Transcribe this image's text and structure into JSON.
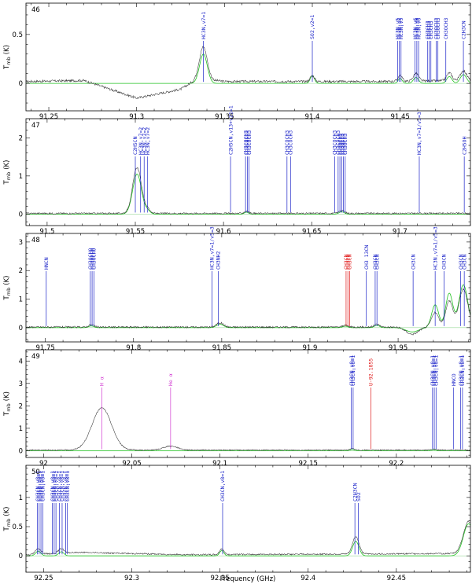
{
  "colors": {
    "observed": "#333333",
    "model": "#22c322",
    "label_default": "#1a22c8",
    "label_red": "#e01818",
    "label_magenta": "#d23cd2"
  },
  "chart_data": {
    "type": "line",
    "xlabel": "Frequency (GHz)",
    "ylabel": "T_mb (K)",
    "ylabel_main": "T",
    "ylabel_sub": "mb",
    "ylabel_unit": "(K)",
    "panels": [
      {
        "id": "46",
        "xlim": [
          91.237,
          91.49
        ],
        "ylim": [
          -0.28,
          0.82
        ],
        "xticks": [
          91.25,
          91.3,
          91.35,
          91.4,
          91.45
        ],
        "xtick_labels": [
          "91.25",
          "91.3",
          "91.35",
          "91.4",
          "91.45"
        ],
        "yticks": [
          0,
          0.5
        ],
        "ytick_labels": [
          "0",
          "0.5"
        ],
        "noise": 0.012,
        "baseline": [
          [
            91.237,
            0.02
          ],
          [
            91.27,
            0.03
          ],
          [
            91.3,
            -0.15
          ],
          [
            91.325,
            -0.06
          ],
          [
            91.335,
            0.05
          ],
          [
            91.35,
            0.02
          ],
          [
            91.44,
            0.02
          ],
          [
            91.49,
            0.03
          ]
        ],
        "features": [
          {
            "c": 91.338,
            "a": 0.33,
            "w": 0.0022,
            "m": 0.3
          },
          {
            "c": 91.4,
            "a": 0.06,
            "w": 0.0012,
            "m": 0.08
          },
          {
            "c": 91.45,
            "a": 0.06,
            "w": 0.0012,
            "m": 0.05
          },
          {
            "c": 91.459,
            "a": 0.08,
            "w": 0.0015,
            "m": 0.06
          },
          {
            "c": 91.478,
            "a": 0.08,
            "w": 0.0015,
            "m": 0.07
          },
          {
            "c": 91.486,
            "a": 0.1,
            "w": 0.0018,
            "m": 0.09
          }
        ],
        "lines": [
          {
            "f": 91.338,
            "label": "HC3N,v7=1",
            "color": "blue"
          },
          {
            "f": 91.4,
            "label": "SO2,v2=1",
            "color": "blue"
          },
          {
            "f": 91.4485,
            "label": "HC3N,v5",
            "color": "blue"
          },
          {
            "f": 91.4495,
            "label": "HC3N,v5",
            "color": "blue"
          },
          {
            "f": 91.4505,
            "label": "HC3N,v5",
            "color": "blue"
          },
          {
            "f": 91.4585,
            "label": "HC3N,v6",
            "color": "blue"
          },
          {
            "f": 91.4595,
            "label": "HC3N,v6",
            "color": "blue"
          },
          {
            "f": 91.4605,
            "label": "HC3N,v6",
            "color": "blue"
          },
          {
            "f": 91.4655,
            "label": "CH3CH3",
            "color": "blue"
          },
          {
            "f": 91.4665,
            "label": "CH3CH3",
            "color": "blue"
          },
          {
            "f": 91.4675,
            "label": "CH3CH3",
            "color": "blue"
          },
          {
            "f": 91.4705,
            "label": "CH3OCH3",
            "color": "blue"
          },
          {
            "f": 91.4715,
            "label": "CH3OCH3",
            "color": "blue"
          },
          {
            "f": 91.476,
            "label": "CH3OCH3",
            "color": "blue"
          },
          {
            "f": 91.486,
            "label": "C2H3CN",
            "color": "blue"
          }
        ]
      },
      {
        "id": "47",
        "xlim": [
          91.488,
          91.74
        ],
        "ylim": [
          -0.3,
          2.5
        ],
        "xticks": [
          91.5,
          91.55,
          91.6,
          91.65,
          91.7
        ],
        "xtick_labels": [
          "91.5",
          "91.55",
          "91.6",
          "91.65",
          "91.7"
        ],
        "yticks": [
          0,
          1,
          2
        ],
        "ytick_labels": [
          "0",
          "1",
          "2"
        ],
        "noise": 0.02,
        "baseline": [
          [
            91.488,
            0.02
          ],
          [
            91.74,
            0.02
          ]
        ],
        "features": [
          {
            "c": 91.551,
            "a": 1.2,
            "w": 0.0025,
            "m": 1.05
          },
          {
            "c": 91.557,
            "a": 0.1,
            "w": 0.0015,
            "m": 0.08
          },
          {
            "c": 91.613,
            "a": 0.06,
            "w": 0.0012,
            "m": 0.05
          },
          {
            "c": 91.667,
            "a": 0.08,
            "w": 0.0015,
            "m": 0.06
          }
        ],
        "lines": [
          {
            "f": 91.55,
            "label": "C2H5CN",
            "color": "blue"
          },
          {
            "f": 91.553,
            "label": "HC3N,v7=2",
            "color": "blue"
          },
          {
            "f": 91.555,
            "label": "HC3N,v7=2",
            "color": "blue"
          },
          {
            "f": 91.557,
            "label": "HC3N,v7=2",
            "color": "blue"
          },
          {
            "f": 91.604,
            "label": "C2H5CN,v13+v21=1",
            "color": "blue"
          },
          {
            "f": 91.6125,
            "label": "CH3COCH3",
            "color": "blue"
          },
          {
            "f": 91.6135,
            "label": "CH3COCH3",
            "color": "blue"
          },
          {
            "f": 91.6145,
            "label": "CH3COCH3",
            "color": "blue"
          },
          {
            "f": 91.636,
            "label": "CH3COCH3",
            "color": "blue"
          },
          {
            "f": 91.638,
            "label": "CH3COCH3",
            "color": "blue"
          },
          {
            "f": 91.663,
            "label": "CH3COCH3",
            "color": "blue"
          },
          {
            "f": 91.665,
            "label": "CH3COCH3",
            "color": "blue"
          },
          {
            "f": 91.666,
            "label": "CH3OCH3",
            "color": "blue"
          },
          {
            "f": 91.667,
            "label": "CH3OCH3",
            "color": "blue"
          },
          {
            "f": 91.668,
            "label": "CH3OCH3",
            "color": "blue"
          },
          {
            "f": 91.669,
            "label": "CH3OCH3",
            "color": "blue"
          },
          {
            "f": 91.711,
            "label": "HC3N,v7=1/v5=3",
            "color": "blue"
          },
          {
            "f": 91.7365,
            "label": "C2H5OH",
            "color": "blue"
          }
        ]
      },
      {
        "id": "48",
        "xlim": [
          91.739,
          91.991
        ],
        "ylim": [
          -0.5,
          3.3
        ],
        "xticks": [
          91.75,
          91.8,
          91.85,
          91.9,
          91.95
        ],
        "xtick_labels": [
          "91.75",
          "91.8",
          "91.85",
          "91.9",
          "91.95"
        ],
        "yticks": [
          0,
          1,
          2,
          3
        ],
        "ytick_labels": [
          "0",
          "1",
          "2",
          "3"
        ],
        "noise": 0.03,
        "baseline": [
          [
            91.739,
            0.02
          ],
          [
            91.958,
            0.02
          ],
          [
            91.991,
            0.05
          ]
        ],
        "features": [
          {
            "c": 91.776,
            "a": 0.08,
            "w": 0.0015,
            "m": 0.06
          },
          {
            "c": 91.849,
            "a": 0.15,
            "w": 0.002,
            "m": 0.12
          },
          {
            "c": 91.92,
            "a": 0.06,
            "w": 0.0015,
            "m": 0.05
          },
          {
            "c": 91.938,
            "a": 0.1,
            "w": 0.0015,
            "m": 0.08
          },
          {
            "c": 91.958,
            "a": -0.25,
            "w": 0.0035,
            "m": -0.15
          },
          {
            "c": 91.971,
            "a": 0.5,
            "w": 0.002,
            "m": 0.8
          },
          {
            "c": 91.979,
            "a": 0.9,
            "w": 0.002,
            "m": 1.2
          },
          {
            "c": 91.987,
            "a": 1.3,
            "w": 0.0025,
            "m": 1.5
          }
        ],
        "lines": [
          {
            "f": 91.7505,
            "label": "HNCN",
            "color": "blue"
          },
          {
            "f": 91.7755,
            "label": "CH3OCHO",
            "color": "blue"
          },
          {
            "f": 91.7765,
            "label": "CH3OCHO",
            "color": "blue"
          },
          {
            "f": 91.7775,
            "label": "CH3OCHO",
            "color": "blue"
          },
          {
            "f": 91.8445,
            "label": "HC3N,v7=1/v5=3",
            "color": "blue"
          },
          {
            "f": 91.848,
            "label": "CH3NH2",
            "color": "blue"
          },
          {
            "f": 91.9205,
            "label": "CH3CN",
            "color": "red"
          },
          {
            "f": 91.9215,
            "label": "CH3CN",
            "color": "red"
          },
          {
            "f": 91.9225,
            "label": "CH3CN",
            "color": "red"
          },
          {
            "f": 91.932,
            "label": "CH3 13CN",
            "color": "blue"
          },
          {
            "f": 91.937,
            "label": "CH3CN",
            "color": "blue"
          },
          {
            "f": 91.938,
            "label": "CH3CN",
            "color": "blue"
          },
          {
            "f": 91.9585,
            "label": "CH3CN",
            "color": "blue"
          },
          {
            "f": 91.971,
            "label": "HC3N,v7=1/v5=3",
            "color": "blue"
          },
          {
            "f": 91.976,
            "label": "CH3CN",
            "color": "blue"
          },
          {
            "f": 91.9855,
            "label": "CH3CN",
            "color": "blue"
          },
          {
            "f": 91.9875,
            "label": "CH3CN",
            "color": "blue"
          }
        ]
      },
      {
        "id": "49",
        "xlim": [
          91.99,
          92.242
        ],
        "ylim": [
          -0.3,
          4.5
        ],
        "xticks": [
          92.0,
          92.05,
          92.1,
          92.15,
          92.2
        ],
        "xtick_labels": [
          "92",
          "92.05",
          "92.1",
          "92.15",
          "92.2"
        ],
        "yticks": [
          0,
          1,
          2,
          3,
          4
        ],
        "ytick_labels": [
          "0",
          "1",
          "2",
          "3",
          "4"
        ],
        "noise": 0.025,
        "baseline": [
          [
            91.99,
            0.03
          ],
          [
            92.242,
            0.03
          ]
        ],
        "features": [
          {
            "c": 92.033,
            "a": 1.88,
            "w": 0.0055,
            "m": 0.0
          },
          {
            "c": 92.072,
            "a": 0.18,
            "w": 0.004,
            "m": 0.0
          },
          {
            "c": 92.175,
            "a": 0.06,
            "w": 0.0012,
            "m": 0.05
          },
          {
            "c": 92.221,
            "a": 0.04,
            "w": 0.0012,
            "m": 0.03
          }
        ],
        "lines": [
          {
            "f": 92.033,
            "label": "H α",
            "color": "magenta"
          },
          {
            "f": 92.072,
            "label": "He α",
            "color": "magenta"
          },
          {
            "f": 92.1745,
            "label": "CH3CN,v8=1",
            "color": "blue"
          },
          {
            "f": 92.1755,
            "label": "CH3CN,v8=1",
            "color": "blue"
          },
          {
            "f": 92.1855,
            "label": "U-92.1855",
            "color": "red"
          },
          {
            "f": 92.2205,
            "label": "CH3CN,v8=1",
            "color": "blue"
          },
          {
            "f": 92.2215,
            "label": "CH3CN,v8=1",
            "color": "blue"
          },
          {
            "f": 92.2225,
            "label": "CH3CN,v8=1",
            "color": "blue"
          },
          {
            "f": 92.2325,
            "label": "HNCO",
            "color": "blue"
          },
          {
            "f": 92.2365,
            "label": "CH3CN,v8=1",
            "color": "blue"
          },
          {
            "f": 92.2375,
            "label": "CH3CN,v8=1",
            "color": "blue"
          }
        ]
      },
      {
        "id": "50",
        "xlim": [
          92.24,
          92.492
        ],
        "ylim": [
          -0.28,
          1.55
        ],
        "xticks": [
          92.25,
          92.3,
          92.35,
          92.4,
          92.45
        ],
        "xtick_labels": [
          "92.25",
          "92.3",
          "92.35",
          "92.4",
          "92.45"
        ],
        "yticks": [
          0,
          0.5,
          1
        ],
        "ytick_labels": [
          "0",
          "0.5",
          "1"
        ],
        "noise": 0.012,
        "baseline": [
          [
            92.24,
            0.02
          ],
          [
            92.27,
            0.06
          ],
          [
            92.33,
            0.02
          ],
          [
            92.49,
            0.04
          ]
        ],
        "features": [
          {
            "c": 92.247,
            "a": 0.1,
            "w": 0.0015,
            "m": 0.08
          },
          {
            "c": 92.26,
            "a": 0.08,
            "w": 0.0015,
            "m": 0.07
          },
          {
            "c": 92.351,
            "a": 0.1,
            "w": 0.0012,
            "m": 0.09
          },
          {
            "c": 92.427,
            "a": 0.3,
            "w": 0.0018,
            "m": 0.25
          },
          {
            "c": 92.491,
            "a": 0.55,
            "w": 0.003,
            "m": 0.55
          }
        ],
        "lines": [
          {
            "f": 92.2465,
            "label": "CH3CN,v8=1",
            "color": "blue"
          },
          {
            "f": 92.2475,
            "label": "CH3CN,v8=1",
            "color": "blue"
          },
          {
            "f": 92.2485,
            "label": "CH3CN,v8=1",
            "color": "blue"
          },
          {
            "f": 92.2495,
            "label": "CH3CN,v8=1",
            "color": "blue"
          },
          {
            "f": 92.255,
            "label": "CH3CN,v8=1",
            "color": "blue"
          },
          {
            "f": 92.256,
            "label": "CH3CN,v8=1",
            "color": "blue"
          },
          {
            "f": 92.257,
            "label": "CH3CN,v8=1",
            "color": "blue"
          },
          {
            "f": 92.259,
            "label": "CH3CN,v8=1",
            "color": "blue"
          },
          {
            "f": 92.2605,
            "label": "CH3CN,v8=1",
            "color": "blue"
          },
          {
            "f": 92.2625,
            "label": "CH3CN,v8=1",
            "color": "blue"
          },
          {
            "f": 92.2635,
            "label": "CH3CN,v8=1",
            "color": "blue"
          },
          {
            "f": 92.3515,
            "label": "CH3CN,v8=1",
            "color": "blue"
          },
          {
            "f": 92.4265,
            "label": "C2H3CN",
            "color": "blue"
          },
          {
            "f": 92.4285,
            "label": "SO2",
            "color": "blue"
          }
        ]
      }
    ]
  }
}
